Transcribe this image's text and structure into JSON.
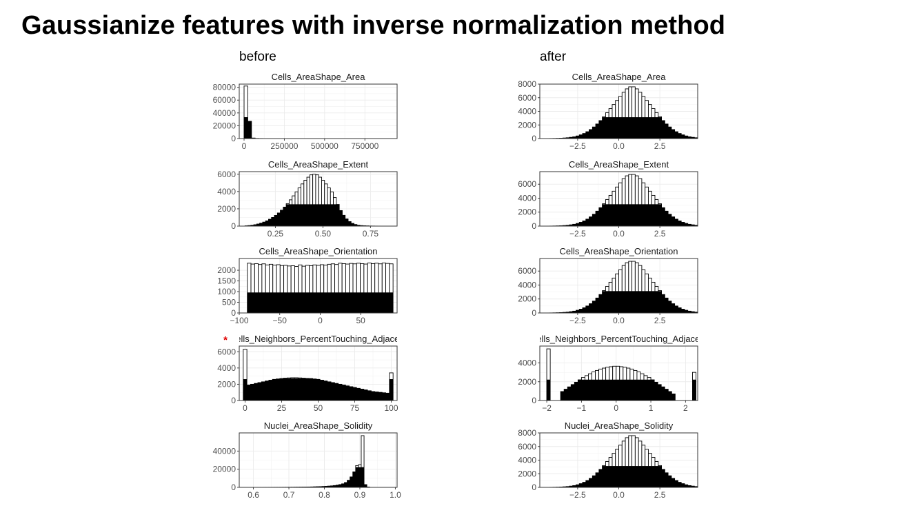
{
  "slide": {
    "title": "Gaussianize features with inverse normalization method"
  },
  "columns": {
    "before": "before",
    "after": "after"
  },
  "marker": "*",
  "chart_data": [
    {
      "type": "bar",
      "column": "before",
      "title": "Cells_AreaShape_Area",
      "clipped_title": false,
      "xlim": [
        -30000,
        950000
      ],
      "ylim": [
        0,
        85000
      ],
      "xticks": [
        0,
        250000,
        500000,
        750000
      ],
      "xtick_labels": [
        "0",
        "250000",
        "500000",
        "750000"
      ],
      "yticks": [
        0,
        20000,
        40000,
        60000,
        80000
      ],
      "ytick_labels": [
        "0",
        "20000",
        "40000",
        "60000",
        "80000"
      ],
      "bin_start": 0,
      "bin_width": 23000,
      "total": [
        82000,
        27000,
        800,
        200,
        100,
        50,
        30,
        20,
        10,
        10,
        5,
        5,
        5,
        5,
        5,
        5,
        5,
        5,
        5,
        5,
        5,
        5,
        5,
        5,
        5,
        5,
        5,
        5,
        5,
        5,
        5,
        5,
        5,
        5,
        5,
        5,
        5,
        5,
        5
      ],
      "filled": [
        33000,
        27000,
        800,
        200,
        100,
        50,
        30,
        20,
        10,
        10,
        5,
        5,
        5,
        5,
        5,
        5,
        5,
        5,
        5,
        5,
        5,
        5,
        5,
        5,
        5,
        5,
        5,
        5,
        5,
        5,
        5,
        5,
        5,
        5,
        5,
        5,
        5,
        5,
        5
      ]
    },
    {
      "type": "bar",
      "column": "after",
      "title": "Cells_AreaShape_Area",
      "clipped_title": false,
      "xlim": [
        -4.8,
        4.8
      ],
      "ylim": [
        0,
        8000
      ],
      "xticks": [
        -2.5,
        0,
        2.5
      ],
      "xtick_labels": [
        "−2.5",
        "0.0",
        "2.5"
      ],
      "yticks": [
        0,
        2000,
        4000,
        6000,
        8000
      ],
      "ytick_labels": [
        "0",
        "2000",
        "4000",
        "6000",
        "8000"
      ],
      "bin_start": -4.4,
      "bin_width": 0.2,
      "total": [
        5,
        10,
        20,
        30,
        50,
        80,
        120,
        180,
        260,
        380,
        540,
        740,
        1000,
        1320,
        1700,
        2140,
        2640,
        3200,
        3800,
        4400,
        5000,
        5600,
        6200,
        6800,
        7300,
        7600,
        7600,
        7300,
        6800,
        6200,
        5600,
        5000,
        4400,
        3800,
        3200,
        2640,
        2140,
        1700,
        1320,
        1000,
        740,
        540,
        380,
        260,
        180,
        120
      ],
      "filled": [
        5,
        10,
        20,
        30,
        50,
        80,
        120,
        180,
        260,
        380,
        540,
        740,
        1000,
        1320,
        1700,
        2140,
        2640,
        3100,
        3100,
        3100,
        3100,
        3100,
        3100,
        3100,
        3100,
        3100,
        3100,
        3100,
        3100,
        3100,
        3100,
        3100,
        3100,
        3100,
        3100,
        2640,
        2140,
        1700,
        1320,
        1000,
        740,
        540,
        380,
        260,
        180,
        120
      ]
    },
    {
      "type": "bar",
      "column": "before",
      "title": "Cells_AreaShape_Extent",
      "clipped_title": false,
      "xlim": [
        0.06,
        0.89
      ],
      "ylim": [
        0,
        6300
      ],
      "xticks": [
        0.25,
        0.5,
        0.75
      ],
      "xtick_labels": [
        "0.25",
        "0.50",
        "0.75"
      ],
      "yticks": [
        0,
        2000,
        4000,
        6000
      ],
      "ytick_labels": [
        "0",
        "2000",
        "4000",
        "6000"
      ],
      "bin_start": 0.09,
      "bin_width": 0.0155,
      "total": [
        30,
        60,
        100,
        160,
        240,
        340,
        460,
        610,
        790,
        1000,
        1240,
        1520,
        1840,
        2200,
        2600,
        3040,
        3500,
        3960,
        4420,
        4880,
        5300,
        5660,
        5930,
        6000,
        5930,
        5660,
        5300,
        4880,
        4420,
        3960,
        3300,
        2500,
        1800,
        1250,
        830,
        520,
        310,
        180,
        100,
        60,
        40,
        25,
        15,
        10,
        6,
        4,
        3,
        2,
        2,
        1
      ],
      "filled": [
        30,
        60,
        100,
        160,
        240,
        340,
        460,
        610,
        790,
        1000,
        1240,
        1520,
        1840,
        2200,
        2500,
        2500,
        2500,
        2500,
        2500,
        2500,
        2500,
        2500,
        2500,
        2500,
        2500,
        2500,
        2500,
        2500,
        2500,
        2500,
        2500,
        2500,
        1800,
        1250,
        830,
        520,
        310,
        180,
        100,
        60,
        40,
        25,
        15,
        10,
        6,
        4,
        3,
        2,
        2,
        1
      ]
    },
    {
      "type": "bar",
      "column": "after",
      "title": "Cells_AreaShape_Extent",
      "clipped_title": false,
      "xlim": [
        -4.8,
        4.8
      ],
      "ylim": [
        0,
        7800
      ],
      "xticks": [
        -2.5,
        0,
        2.5
      ],
      "xtick_labels": [
        "−2.5",
        "0.0",
        "2.5"
      ],
      "yticks": [
        0,
        2000,
        4000,
        6000
      ],
      "ytick_labels": [
        "0",
        "2000",
        "4000",
        "6000"
      ],
      "bin_start": -4.4,
      "bin_width": 0.2,
      "total": [
        5,
        10,
        20,
        30,
        50,
        80,
        120,
        180,
        260,
        380,
        540,
        740,
        1000,
        1320,
        1700,
        2140,
        2640,
        3200,
        3800,
        4400,
        5000,
        5600,
        6200,
        6800,
        7200,
        7400,
        7400,
        7200,
        6800,
        6200,
        5600,
        5000,
        4400,
        3800,
        3200,
        2640,
        2140,
        1700,
        1320,
        1000,
        740,
        540,
        380,
        260,
        180,
        120
      ],
      "filled": [
        5,
        10,
        20,
        30,
        50,
        80,
        120,
        180,
        260,
        380,
        540,
        740,
        1000,
        1320,
        1700,
        2140,
        2640,
        3100,
        3100,
        3100,
        3100,
        3100,
        3100,
        3100,
        3100,
        3100,
        3100,
        3100,
        3100,
        3100,
        3100,
        3100,
        3100,
        3100,
        3100,
        2640,
        2140,
        1700,
        1320,
        1000,
        740,
        540,
        380,
        260,
        180,
        120
      ]
    },
    {
      "type": "bar",
      "column": "before",
      "title": "Cells_AreaShape_Orientation",
      "clipped_title": false,
      "xlim": [
        -100,
        95
      ],
      "ylim": [
        0,
        2550
      ],
      "xticks": [
        -100,
        -50,
        0,
        50
      ],
      "xtick_labels": [
        "−100",
        "−50",
        "0",
        "50"
      ],
      "yticks": [
        0,
        500,
        1000,
        1500,
        2000
      ],
      "ytick_labels": [
        "0",
        "500",
        "1000",
        "1500",
        "2000"
      ],
      "bin_start": -90,
      "bin_width": 4.5,
      "total": [
        2330,
        2290,
        2310,
        2270,
        2300,
        2250,
        2280,
        2240,
        2260,
        2220,
        2230,
        2200,
        2210,
        2180,
        2250,
        2190,
        2230,
        2210,
        2250,
        2230,
        2260,
        2240,
        2280,
        2300,
        2270,
        2330,
        2310,
        2290,
        2320,
        2300,
        2330,
        2310,
        2290,
        2340,
        2310,
        2330,
        2300,
        2340,
        2320,
        2300
      ],
      "filled": [
        950,
        950,
        950,
        950,
        950,
        950,
        950,
        950,
        950,
        950,
        950,
        950,
        950,
        950,
        950,
        950,
        950,
        950,
        950,
        950,
        950,
        950,
        950,
        950,
        950,
        950,
        950,
        950,
        950,
        950,
        950,
        950,
        950,
        950,
        950,
        950,
        950,
        950,
        950,
        950
      ]
    },
    {
      "type": "bar",
      "column": "after",
      "title": "Cells_AreaShape_Orientation",
      "clipped_title": false,
      "xlim": [
        -4.8,
        4.8
      ],
      "ylim": [
        0,
        7800
      ],
      "xticks": [
        -2.5,
        0,
        2.5
      ],
      "xtick_labels": [
        "−2.5",
        "0.0",
        "2.5"
      ],
      "yticks": [
        0,
        2000,
        4000,
        6000
      ],
      "ytick_labels": [
        "0",
        "2000",
        "4000",
        "6000"
      ],
      "bin_start": -4.4,
      "bin_width": 0.2,
      "total": [
        5,
        10,
        20,
        30,
        50,
        80,
        120,
        180,
        260,
        380,
        540,
        740,
        1000,
        1320,
        1700,
        2140,
        2640,
        3200,
        3800,
        4400,
        5000,
        5600,
        6200,
        6800,
        7200,
        7400,
        7400,
        7200,
        6800,
        6200,
        5600,
        5000,
        4400,
        3800,
        3200,
        2640,
        2140,
        1700,
        1320,
        1000,
        740,
        540,
        380,
        260,
        180,
        120
      ],
      "filled": [
        5,
        10,
        20,
        30,
        50,
        80,
        120,
        180,
        260,
        380,
        540,
        740,
        1000,
        1320,
        1700,
        2140,
        2640,
        3100,
        3100,
        3100,
        3100,
        3100,
        3100,
        3100,
        3100,
        3100,
        3100,
        3100,
        3100,
        3100,
        3100,
        3100,
        3100,
        3100,
        3100,
        2640,
        2140,
        1700,
        1320,
        1000,
        740,
        540,
        380,
        260,
        180,
        120
      ]
    },
    {
      "type": "bar",
      "column": "before",
      "title": "Cells_Neighbors_PercentTouching_Adjacent",
      "clipped_title": true,
      "marked": true,
      "xlim": [
        -4,
        104
      ],
      "ylim": [
        0,
        6700
      ],
      "xticks": [
        0,
        25,
        50,
        75,
        100
      ],
      "xtick_labels": [
        "0",
        "25",
        "50",
        "75",
        "100"
      ],
      "yticks": [
        0,
        2000,
        4000,
        6000
      ],
      "ytick_labels": [
        "0",
        "2000",
        "4000",
        "6000"
      ],
      "bin_start": -1.25,
      "bin_width": 2.5,
      "total": [
        6300,
        1900,
        2000,
        2100,
        2200,
        2300,
        2400,
        2500,
        2600,
        2650,
        2700,
        2750,
        2780,
        2800,
        2800,
        2780,
        2750,
        2720,
        2700,
        2650,
        2600,
        2500,
        2400,
        2300,
        2200,
        2100,
        2000,
        1900,
        1800,
        1700,
        1600,
        1500,
        1400,
        1300,
        1200,
        1100,
        1050,
        1000,
        950,
        900,
        3400
      ],
      "filled": [
        2600,
        1900,
        2000,
        2100,
        2200,
        2300,
        2400,
        2500,
        2600,
        2650,
        2700,
        2700,
        2700,
        2700,
        2700,
        2700,
        2700,
        2700,
        2700,
        2650,
        2600,
        2500,
        2400,
        2300,
        2200,
        2100,
        2000,
        1900,
        1800,
        1700,
        1600,
        1500,
        1400,
        1300,
        1200,
        1100,
        1050,
        1000,
        950,
        900,
        2600
      ]
    },
    {
      "type": "bar",
      "column": "after",
      "title": "Cells_Neighbors_PercentTouching_Adjacent",
      "clipped_title": true,
      "marked": false,
      "xlim": [
        -2.2,
        2.35
      ],
      "ylim": [
        0,
        5800
      ],
      "xticks": [
        -2,
        -1,
        0,
        1,
        2
      ],
      "xtick_labels": [
        "−2",
        "−1",
        "0",
        "1",
        "2"
      ],
      "yticks": [
        0,
        2000,
        4000
      ],
      "ytick_labels": [
        "0",
        "2000",
        "4000"
      ],
      "bin_start": -2.0,
      "bin_width": 0.1,
      "total": [
        5500,
        0,
        0,
        0,
        950,
        1200,
        1450,
        1700,
        1950,
        2200,
        2450,
        2650,
        2850,
        3050,
        3200,
        3350,
        3450,
        3550,
        3600,
        3650,
        3650,
        3600,
        3550,
        3450,
        3350,
        3200,
        3050,
        2850,
        2650,
        2450,
        2200,
        1950,
        1700,
        1450,
        1200,
        950,
        700,
        0,
        0,
        0,
        0,
        0,
        3000
      ],
      "filled": [
        2200,
        0,
        0,
        0,
        950,
        1200,
        1450,
        1700,
        1950,
        2200,
        2200,
        2200,
        2200,
        2200,
        2200,
        2200,
        2200,
        2200,
        2200,
        2200,
        2200,
        2200,
        2200,
        2200,
        2200,
        2200,
        2200,
        2200,
        2200,
        2200,
        2200,
        1950,
        1700,
        1450,
        1200,
        950,
        700,
        0,
        0,
        0,
        0,
        0,
        2200
      ]
    },
    {
      "type": "bar",
      "column": "before",
      "title": "Nuclei_AreaShape_Solidity",
      "clipped_title": false,
      "xlim": [
        0.56,
        1.005
      ],
      "ylim": [
        0,
        60000
      ],
      "xticks": [
        0.6,
        0.7,
        0.8,
        0.9,
        1.0
      ],
      "xtick_labels": [
        "0.6",
        "0.7",
        "0.8",
        "0.9",
        "1.0"
      ],
      "yticks": [
        0,
        20000,
        40000
      ],
      "ytick_labels": [
        "0",
        "20000",
        "40000"
      ],
      "bin_start": 0.58,
      "bin_width": 0.0079,
      "total": [
        30,
        30,
        40,
        40,
        50,
        50,
        60,
        60,
        70,
        80,
        90,
        100,
        110,
        130,
        150,
        170,
        190,
        220,
        250,
        290,
        330,
        380,
        440,
        510,
        600,
        700,
        820,
        970,
        1150,
        1370,
        1650,
        2000,
        2450,
        3050,
        3900,
        5300,
        7800,
        11500,
        17000,
        24000,
        25000,
        57000,
        3000,
        400
      ],
      "filled": [
        30,
        30,
        40,
        40,
        50,
        50,
        60,
        60,
        70,
        80,
        90,
        100,
        110,
        130,
        150,
        170,
        190,
        220,
        250,
        290,
        330,
        380,
        440,
        510,
        600,
        700,
        820,
        970,
        1150,
        1370,
        1650,
        2000,
        2450,
        3050,
        3900,
        5300,
        7800,
        11500,
        17000,
        22000,
        22000,
        22000,
        3000,
        400
      ]
    },
    {
      "type": "bar",
      "column": "after",
      "title": "Nuclei_AreaShape_Solidity",
      "clipped_title": false,
      "xlim": [
        -4.8,
        4.8
      ],
      "ylim": [
        0,
        8000
      ],
      "xticks": [
        -2.5,
        0,
        2.5
      ],
      "xtick_labels": [
        "−2.5",
        "0.0",
        "2.5"
      ],
      "yticks": [
        0,
        2000,
        4000,
        6000,
        8000
      ],
      "ytick_labels": [
        "0",
        "2000",
        "4000",
        "6000",
        "8000"
      ],
      "bin_start": -4.4,
      "bin_width": 0.2,
      "total": [
        5,
        10,
        20,
        30,
        50,
        80,
        120,
        180,
        260,
        380,
        540,
        740,
        1000,
        1320,
        1700,
        2140,
        2640,
        3200,
        3800,
        4400,
        5000,
        5600,
        6200,
        6800,
        7300,
        7600,
        7600,
        7300,
        6800,
        6200,
        5600,
        5000,
        4400,
        3800,
        3200,
        2640,
        2140,
        1700,
        1320,
        1000,
        740,
        540,
        380,
        260,
        180,
        120
      ],
      "filled": [
        5,
        10,
        20,
        30,
        50,
        80,
        120,
        180,
        260,
        380,
        540,
        740,
        1000,
        1320,
        1700,
        2140,
        2640,
        3100,
        3100,
        3100,
        3100,
        3100,
        3100,
        3100,
        3100,
        3100,
        3100,
        3100,
        3100,
        3100,
        3100,
        3100,
        3100,
        3100,
        3100,
        2640,
        2140,
        1700,
        1320,
        1000,
        740,
        540,
        380,
        260,
        180,
        120
      ]
    }
  ]
}
